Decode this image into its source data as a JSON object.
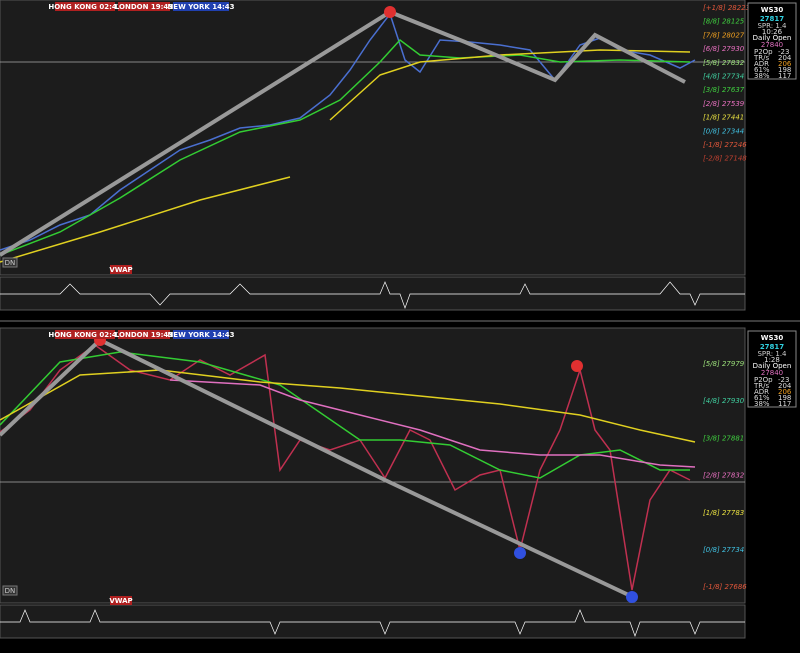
{
  "panels": [
    {
      "sessions": [
        "HONG KONG 02:43",
        "LONDON 19:43",
        "NEW YORK 14:43"
      ],
      "levels": [
        {
          "label": "[+1/8] 28223",
          "color": "#e0563a"
        },
        {
          "label": "[8/8] 28125",
          "color": "#3fcf3f"
        },
        {
          "label": "[7/8] 28027",
          "color": "#f0a020"
        },
        {
          "label": "[6/8] 27930",
          "color": "#e870c0"
        },
        {
          "label": "[5/8] 27832",
          "color": "#9be07a"
        },
        {
          "label": "[4/8] 27734",
          "color": "#40d0a0"
        },
        {
          "label": "[3/8] 27637",
          "color": "#3fcf3f"
        },
        {
          "label": "[2/8] 27539",
          "color": "#e870c0"
        },
        {
          "label": "[1/8] 27441",
          "color": "#e8e040"
        },
        {
          "label": "[0/8] 27344",
          "color": "#40c0e0"
        },
        {
          "label": "[-1/8] 27246",
          "color": "#e0563a"
        },
        {
          "label": "[-2/8] 27148",
          "color": "#c04030"
        }
      ],
      "info": {
        "symbol": "WS30",
        "price": "27817",
        "spread": "SPR: 1.4",
        "timer": "10:26",
        "open_label": "Daily Open",
        "open": "27840",
        "rows": [
          [
            "P2Op",
            "-23"
          ],
          [
            "TR/s",
            "204"
          ],
          [
            "ADR",
            "206"
          ],
          [
            "61%",
            "198"
          ],
          [
            "38%",
            "117"
          ]
        ]
      },
      "vwap": "VWAP",
      "mode": "DN"
    },
    {
      "sessions": [
        "HONG KONG 02:43",
        "LONDON 19:43",
        "NEW YORK 14:43"
      ],
      "levels": [
        {
          "label": "[5/8] 27979",
          "color": "#9be07a"
        },
        {
          "label": "[4/8] 27930",
          "color": "#40d0a0"
        },
        {
          "label": "[3/8] 27881",
          "color": "#3fcf3f"
        },
        {
          "label": "[2/8] 27832",
          "color": "#e870c0"
        },
        {
          "label": "[1/8] 27783",
          "color": "#e8e040"
        },
        {
          "label": "[0/8] 27734",
          "color": "#40c0e0"
        },
        {
          "label": "[-1/8] 27686",
          "color": "#e0563a"
        }
      ],
      "info": {
        "symbol": "WS30",
        "price": "27817",
        "spread": "SPR: 1.4",
        "timer": "1:28",
        "open_label": "Daily Open",
        "open": "27840",
        "rows": [
          [
            "P2Op",
            "-23"
          ],
          [
            "TR/s",
            "204"
          ],
          [
            "ADR",
            "206"
          ],
          [
            "61%",
            "198"
          ],
          [
            "38%",
            "117"
          ]
        ]
      },
      "vwap": "VWAP",
      "mode": "DN"
    }
  ]
}
